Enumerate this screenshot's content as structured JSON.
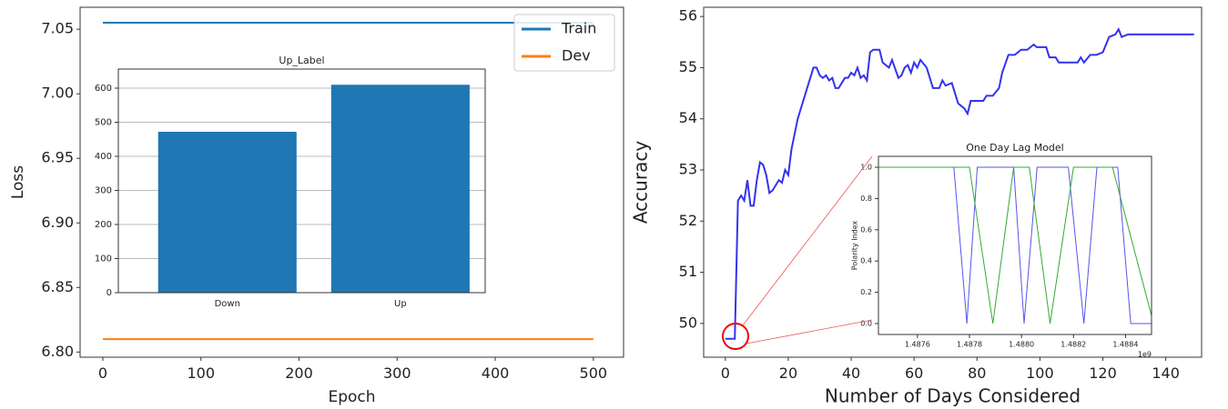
{
  "chart_data": [
    {
      "type": "line",
      "xlabel": "Epoch",
      "ylabel": "Loss",
      "xlim": [
        -23.2,
        530.8
      ],
      "ylim": [
        6.796,
        7.067
      ],
      "xticks": [
        0,
        100,
        200,
        300,
        400,
        500
      ],
      "yticks": [
        {
          "value": 6.8,
          "label": "6.80"
        },
        6.85,
        {
          "value": 6.9,
          "label": "6.90"
        },
        6.95,
        {
          "value": 7.0,
          "label": "7.00"
        },
        7.05
      ],
      "legend": "upper right",
      "series": [
        {
          "name": "Train",
          "color": "#1f77b4",
          "x": [
            0,
            500
          ],
          "values": [
            7.055,
            7.055
          ]
        },
        {
          "name": "Dev",
          "color": "#ff7f0e",
          "x": [
            0,
            500
          ],
          "values": [
            6.81,
            6.81
          ]
        }
      ]
    },
    {
      "type": "bar",
      "title": "Up_Label",
      "categories": [
        "Down",
        "Up"
      ],
      "values": [
        472,
        610
      ],
      "color": "#1f77b4",
      "ylim": [
        0,
        656
      ],
      "yticks": [
        0,
        100,
        200,
        300,
        400,
        500,
        600
      ],
      "grid": true
    },
    {
      "type": "line",
      "xlabel": "Number of Days Considered",
      "ylabel": "Accuracy",
      "xlim": [
        -6.9,
        151.4
      ],
      "ylim": [
        49.34,
        56.18
      ],
      "xticks": [
        0,
        20,
        40,
        60,
        80,
        100,
        120,
        140
      ],
      "yticks": [
        50,
        51,
        52,
        53,
        54,
        55,
        56
      ],
      "series": [
        {
          "name": "Accuracy",
          "color": "#3333ee",
          "x": [
            0,
            1,
            2,
            3,
            4,
            5,
            6,
            7,
            8,
            9,
            10,
            11,
            12,
            13,
            14,
            15,
            16,
            17,
            18,
            19,
            20,
            21,
            23,
            25,
            27,
            28,
            29,
            30,
            31,
            32,
            33,
            34,
            35,
            36,
            37,
            38,
            39,
            40,
            41,
            42,
            43,
            44,
            45,
            46,
            47,
            49,
            50,
            52,
            53,
            55,
            56,
            57,
            58,
            59,
            60,
            61,
            62,
            64,
            66,
            68,
            69,
            70,
            72,
            73,
            74,
            76,
            77,
            78,
            80,
            82,
            83,
            85,
            87,
            88,
            90,
            92,
            94,
            96,
            97,
            98,
            99,
            102,
            103,
            105,
            106,
            110,
            112,
            113,
            114,
            116,
            118,
            120,
            121,
            122,
            124,
            125,
            126,
            128,
            132,
            149
          ],
          "values": [
            49.7,
            49.7,
            49.7,
            49.7,
            52.4,
            52.5,
            52.4,
            52.8,
            52.3,
            52.3,
            52.8,
            53.15,
            53.1,
            52.9,
            52.55,
            52.6,
            52.7,
            52.8,
            52.75,
            53.0,
            52.9,
            53.4,
            54.0,
            54.4,
            54.8,
            55.0,
            55.0,
            54.85,
            54.8,
            54.85,
            54.75,
            54.8,
            54.6,
            54.6,
            54.7,
            54.8,
            54.8,
            54.9,
            54.85,
            55.0,
            54.8,
            54.85,
            54.75,
            55.3,
            55.35,
            55.35,
            55.1,
            55.0,
            55.15,
            54.8,
            54.85,
            55.0,
            55.05,
            54.9,
            55.1,
            55.0,
            55.15,
            55.0,
            54.6,
            54.6,
            54.75,
            54.65,
            54.7,
            54.5,
            54.3,
            54.2,
            54.1,
            54.35,
            54.35,
            54.35,
            54.45,
            54.45,
            54.6,
            54.9,
            55.25,
            55.25,
            55.35,
            55.35,
            55.4,
            55.45,
            55.4,
            55.4,
            55.2,
            55.2,
            55.1,
            55.1,
            55.1,
            55.2,
            55.1,
            55.25,
            55.25,
            55.3,
            55.45,
            55.6,
            55.65,
            55.75,
            55.6,
            55.65,
            55.65,
            55.65
          ]
        }
      ]
    },
    {
      "type": "line",
      "title": "One Day Lag Model",
      "ylabel": "Polarity Index",
      "x_offset_label": "1e9",
      "xlim": [
        1.48745,
        1.4885
      ],
      "ylim": [
        -0.07,
        1.07
      ],
      "xticks": [
        1.4876,
        1.4878,
        {
          "value": 1.488,
          "label": "1.4880"
        },
        1.4882,
        1.4884
      ],
      "yticks": [
        {
          "value": 0,
          "label": "0.0"
        },
        0.2,
        0.4,
        0.6,
        0.8,
        {
          "value": 1,
          "label": "1.0"
        }
      ],
      "series": [
        {
          "color": "#5555ee",
          "x": [
            1.48745,
            1.48774,
            1.48779,
            1.48783,
            1.48797,
            1.48801,
            1.48806,
            1.48818,
            1.48824,
            1.48829,
            1.48837,
            1.48842,
            1.4885
          ],
          "values": [
            1,
            1,
            0,
            1,
            1,
            0,
            1,
            1,
            0,
            1,
            1,
            0,
            0
          ]
        },
        {
          "color": "#33aa33",
          "x": [
            1.48745,
            1.4878,
            1.48789,
            1.48797,
            1.48803,
            1.48811,
            1.4882,
            1.48835,
            1.4885
          ],
          "values": [
            1,
            1,
            0,
            1,
            1,
            0,
            1,
            1,
            0.05
          ]
        }
      ]
    }
  ]
}
